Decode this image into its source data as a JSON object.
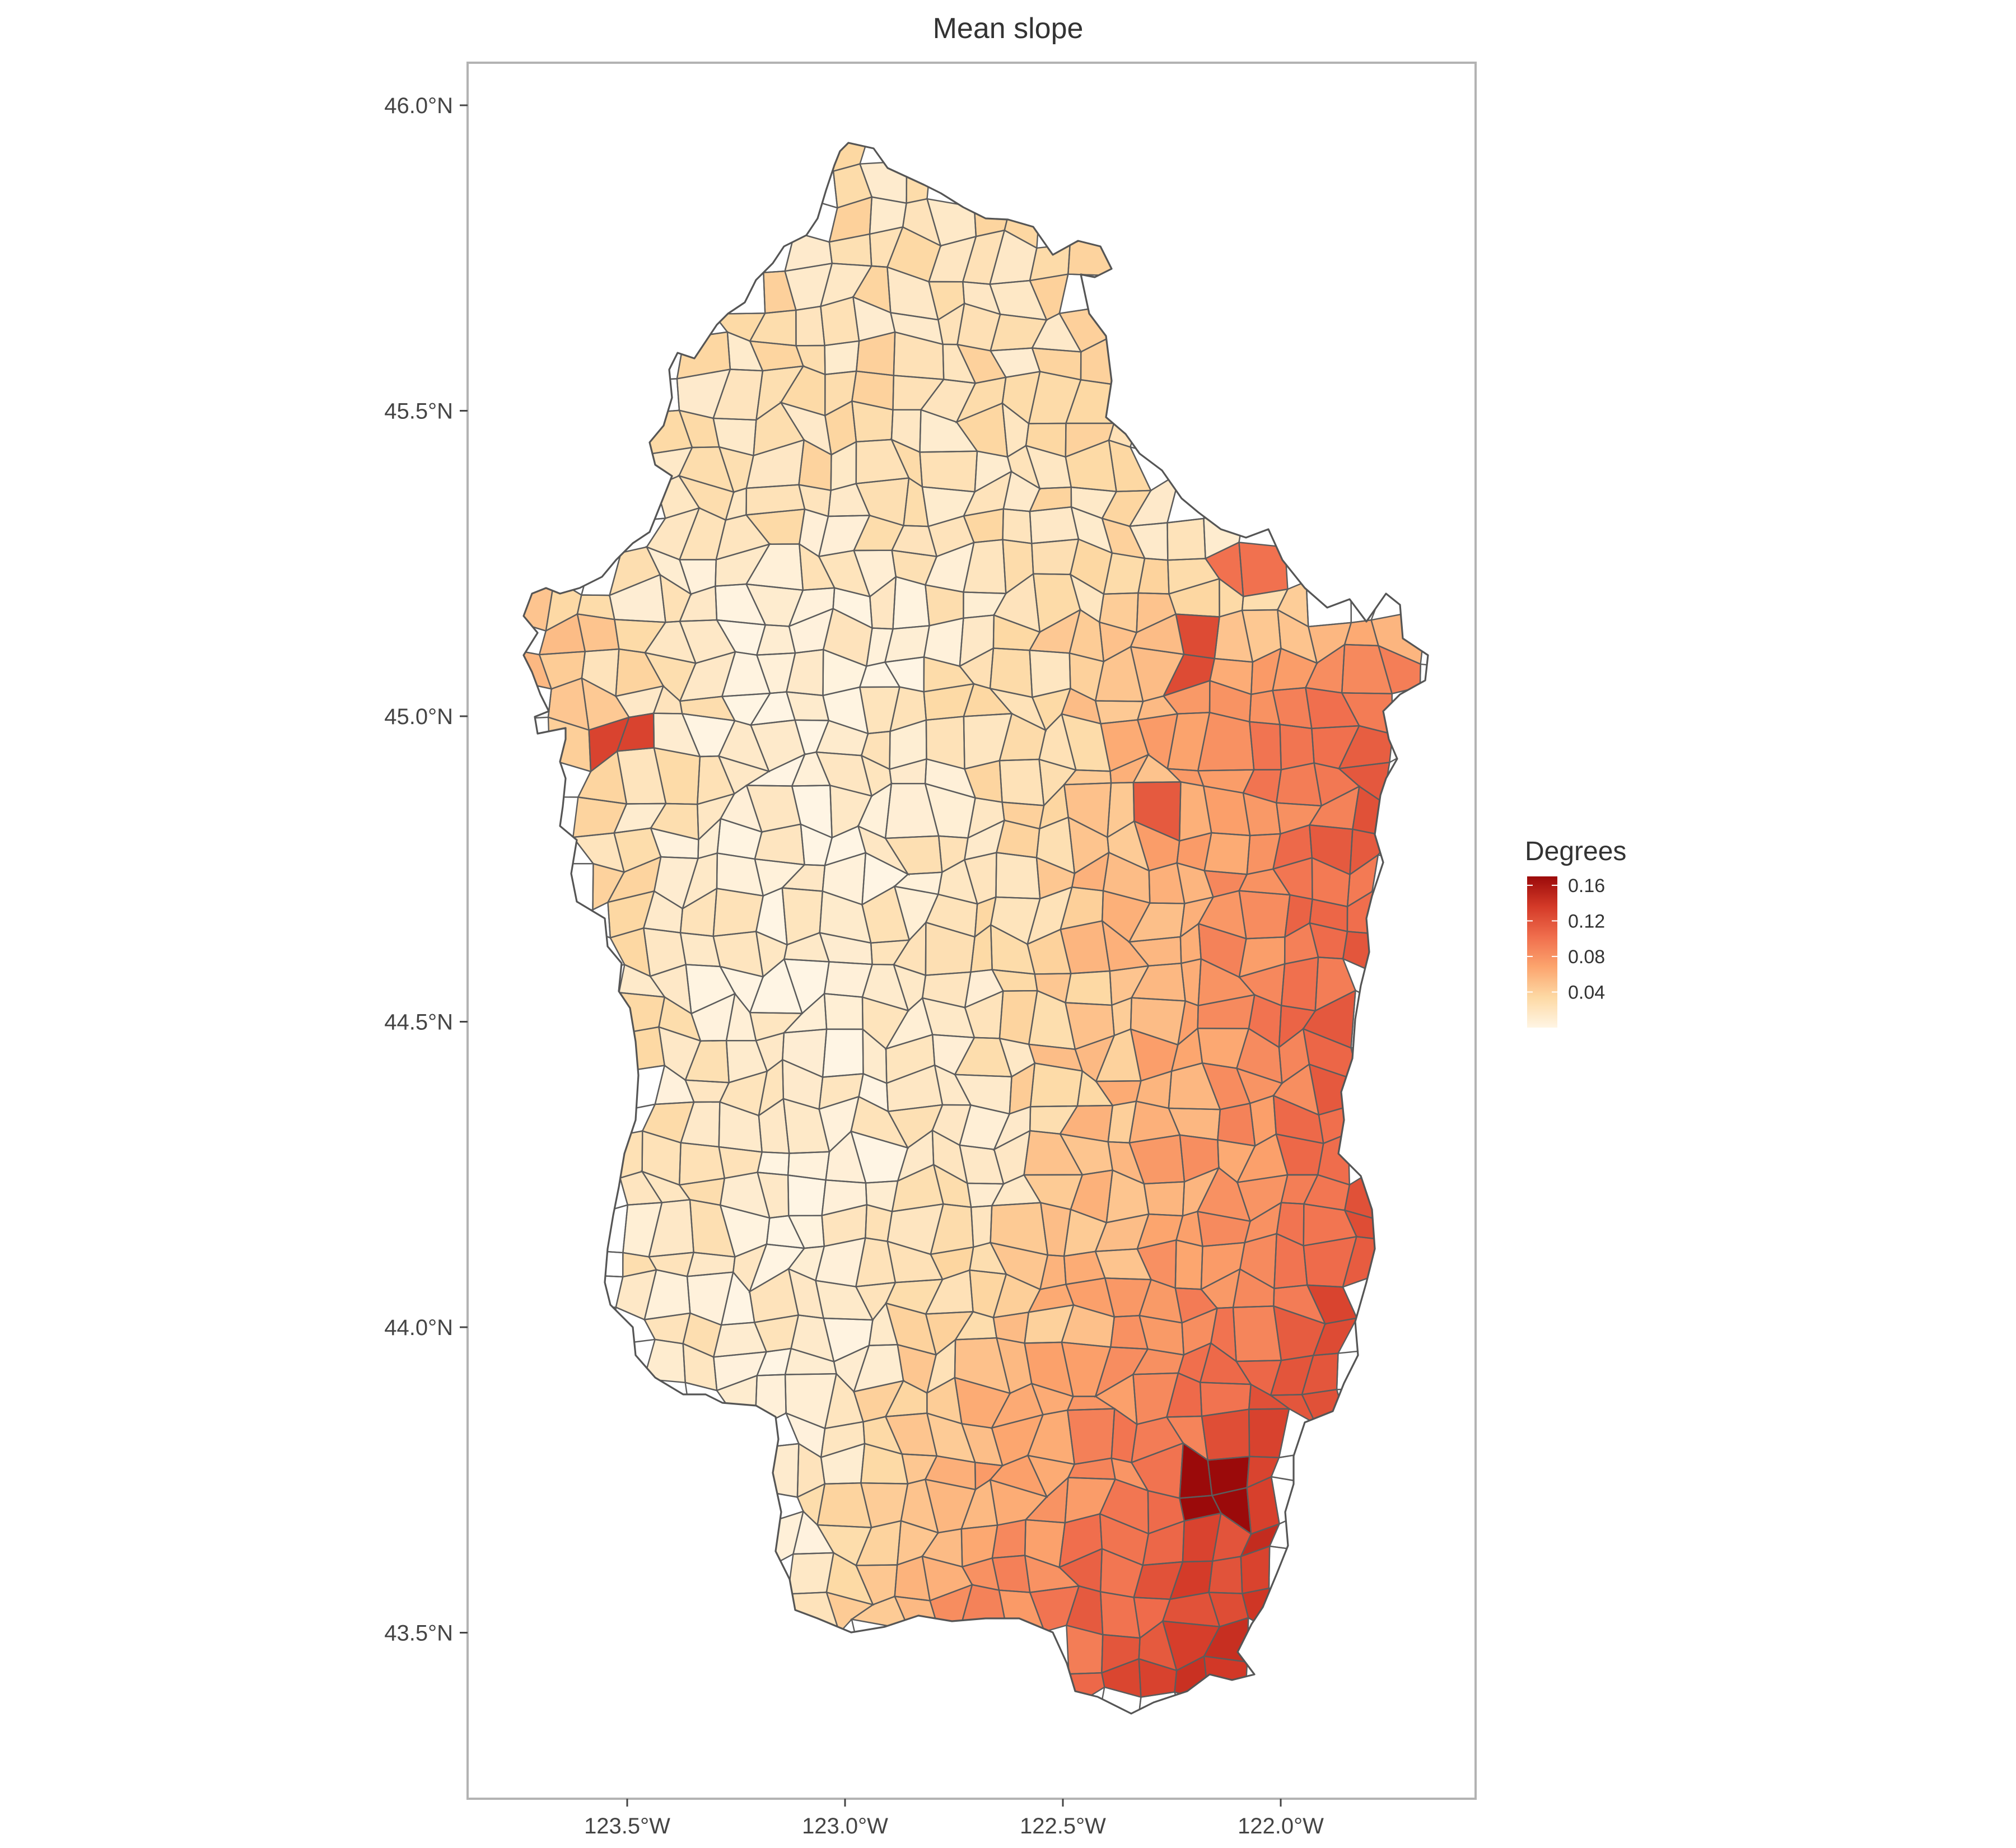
{
  "title": "Mean slope",
  "map": {
    "lat_ticks": [
      {
        "value": 46.0,
        "label": "46.0°N"
      },
      {
        "value": 45.5,
        "label": "45.5°N"
      },
      {
        "value": 45.0,
        "label": "45.0°N"
      },
      {
        "value": 44.5,
        "label": "44.5°N"
      },
      {
        "value": 44.0,
        "label": "44.0°N"
      },
      {
        "value": 43.5,
        "label": "43.5°N"
      }
    ],
    "lon_ticks": [
      {
        "value": -123.5,
        "label": "123.5°W"
      },
      {
        "value": -123.0,
        "label": "123.0°W"
      },
      {
        "value": -122.5,
        "label": "122.5°W"
      },
      {
        "value": -122.0,
        "label": "122.0°W"
      }
    ],
    "lon_range": [
      -123.86,
      -121.55
    ],
    "lat_range": [
      43.22,
      46.07
    ]
  },
  "legend": {
    "title": "Degrees",
    "breaks": [
      {
        "value": 0.16,
        "label": "0.16"
      },
      {
        "value": 0.12,
        "label": "0.12"
      },
      {
        "value": 0.08,
        "label": "0.08"
      },
      {
        "value": 0.04,
        "label": "0.04"
      }
    ],
    "range": [
      0.0,
      0.17
    ],
    "colors": [
      "#FFF5E4",
      "#FDD9A4",
      "#FCA56E",
      "#F06E4D",
      "#D43A28",
      "#9B0A0A"
    ]
  }
}
